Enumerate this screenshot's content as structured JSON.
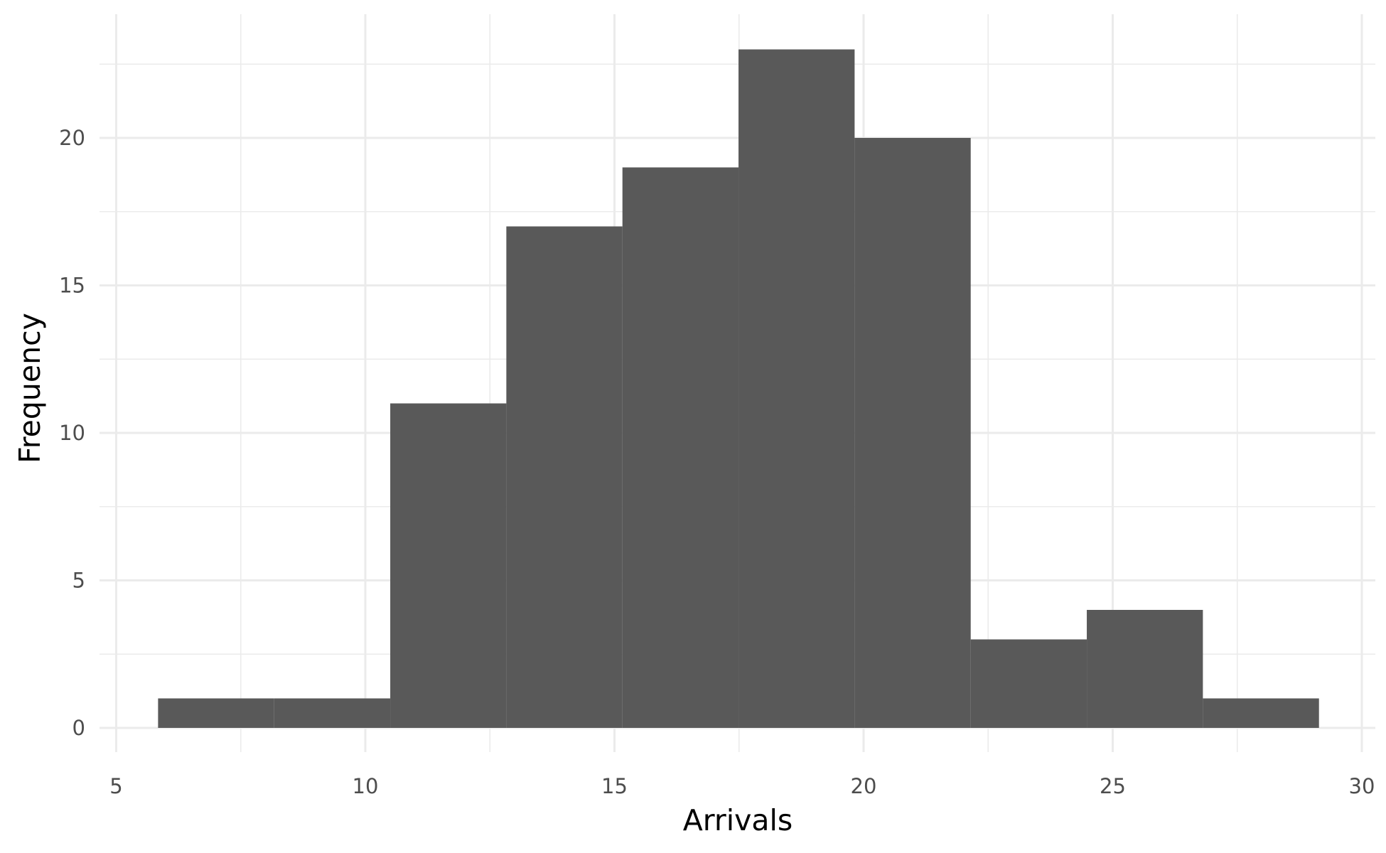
{
  "chart_data": {
    "type": "bar",
    "subtype": "histogram",
    "xlabel": "Arrivals",
    "ylabel": "Frequency",
    "xlim": [
      5,
      30
    ],
    "ylim": [
      0,
      23
    ],
    "x_ticks": [
      "5",
      "10",
      "15",
      "20",
      "25",
      "30"
    ],
    "y_ticks": [
      "0",
      "5",
      "10",
      "15",
      "20"
    ],
    "bins": [
      {
        "start": 5.84,
        "end": 8.17,
        "count": 1
      },
      {
        "start": 8.17,
        "end": 10.5,
        "count": 1
      },
      {
        "start": 10.5,
        "end": 12.83,
        "count": 11
      },
      {
        "start": 12.83,
        "end": 15.16,
        "count": 17
      },
      {
        "start": 15.16,
        "end": 17.49,
        "count": 19
      },
      {
        "start": 17.49,
        "end": 19.82,
        "count": 23
      },
      {
        "start": 19.82,
        "end": 22.15,
        "count": 20
      },
      {
        "start": 22.15,
        "end": 24.48,
        "count": 3
      },
      {
        "start": 24.48,
        "end": 26.81,
        "count": 4
      },
      {
        "start": 26.81,
        "end": 29.14,
        "count": 1
      }
    ],
    "grid": true,
    "bar_color": "#595959",
    "grid_color": "#ebebeb"
  }
}
